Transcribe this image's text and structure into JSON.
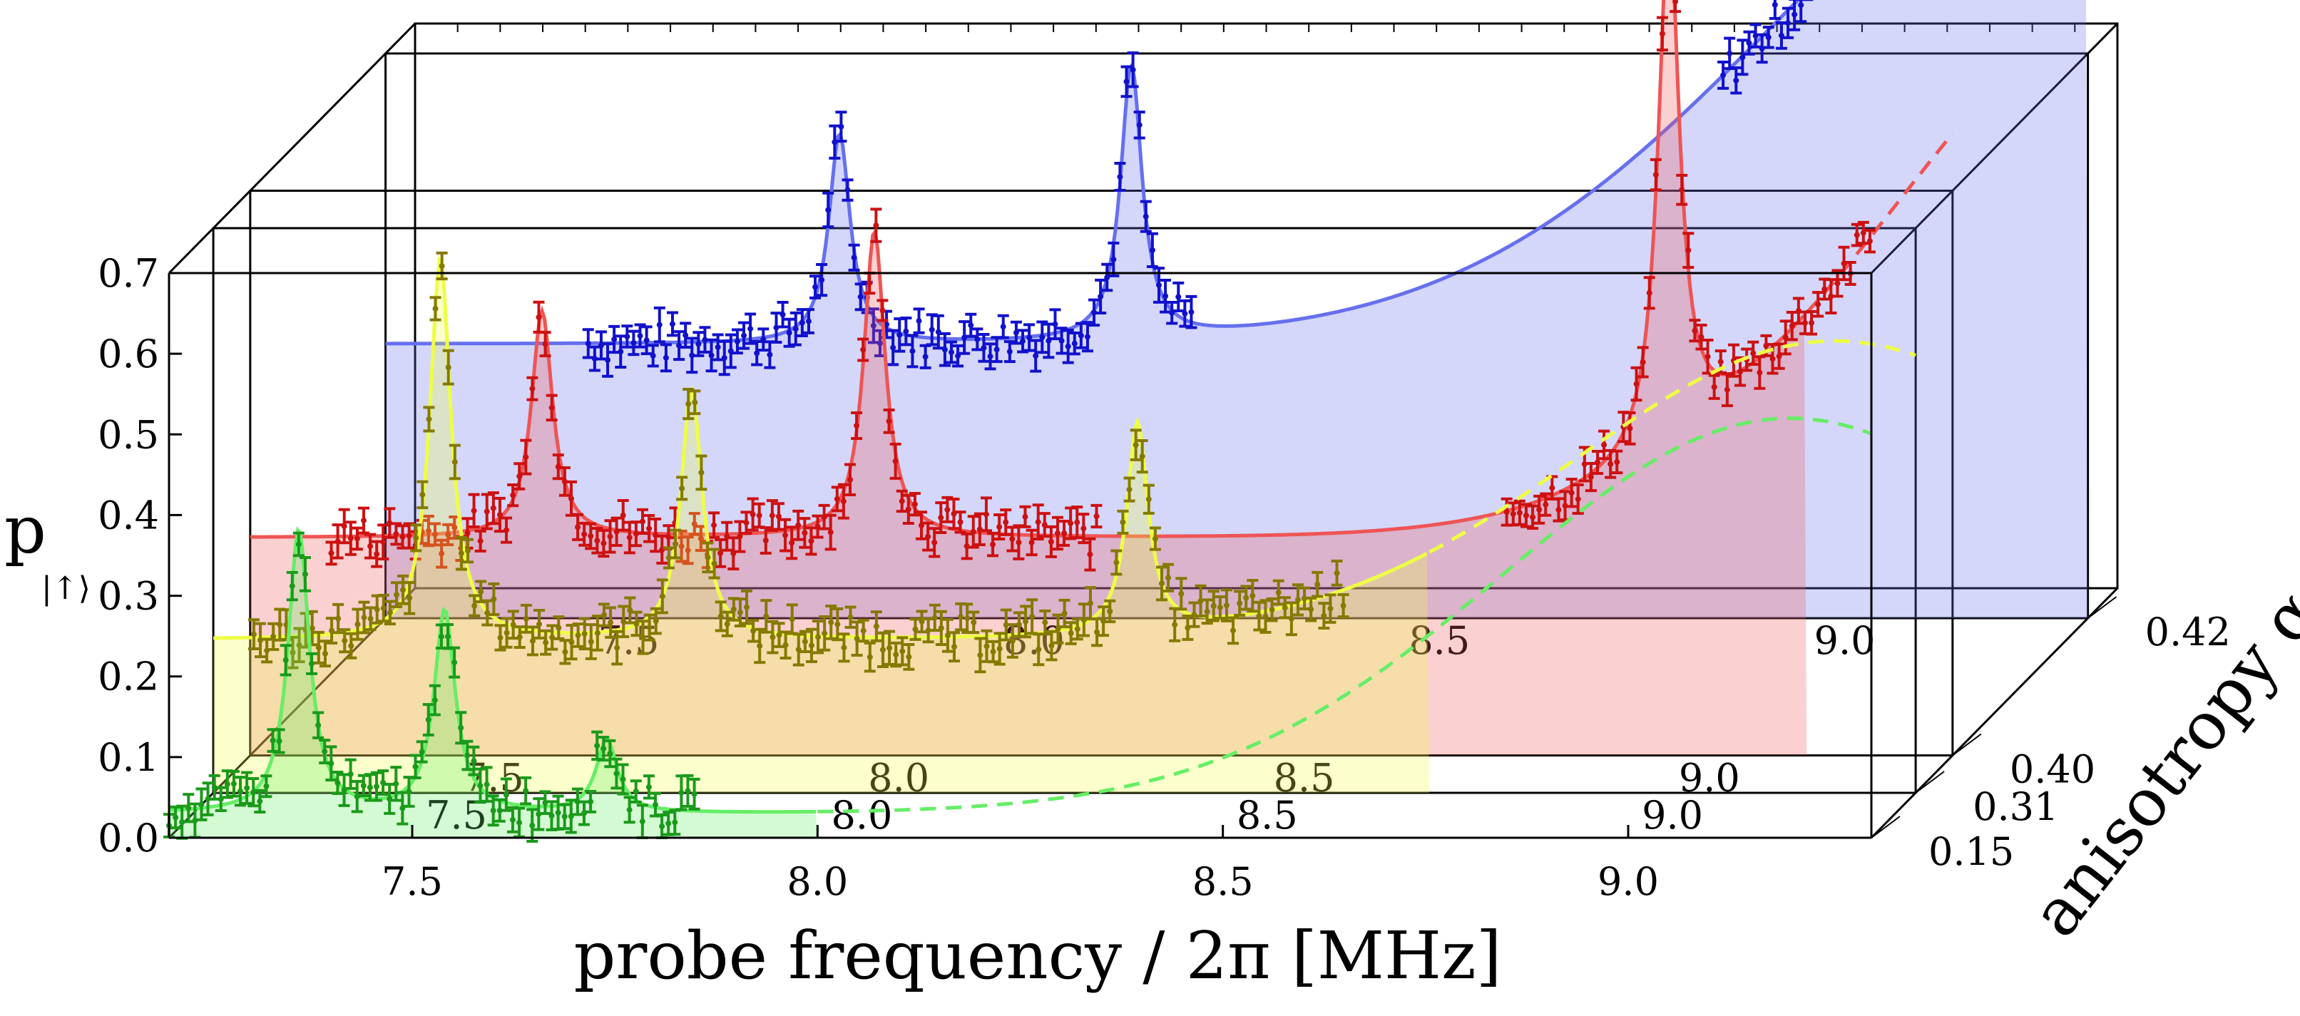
{
  "chart_data": {
    "type": "line",
    "title": "",
    "xlabel": "probe frequency / 2π [MHz]",
    "ylabel": "p",
    "ylabel_subscript": "|↑⟩",
    "zlabel": "anisotropy α",
    "xlim": [
      7.2,
      9.3
    ],
    "ylim": [
      0.0,
      0.7
    ],
    "x_ticks": [
      "7.5",
      "8.0",
      "8.5",
      "9.0"
    ],
    "y_ticks": [
      "0.0",
      "0.1",
      "0.2",
      "0.3",
      "0.4",
      "0.5",
      "0.6",
      "0.7"
    ],
    "z_ticks": [
      "0.15",
      "0.31",
      "0.40",
      "0.42"
    ],
    "series": [
      {
        "name": "0.15",
        "color": "#1a9a1a",
        "fit_color": "#66ee66",
        "baseline": 0.03,
        "data_range": [
          7.2,
          7.85
        ],
        "fit_solid_end": 8.0,
        "peaks": [
          {
            "x": 7.36,
            "y": 0.38
          },
          {
            "x": 7.54,
            "y": 0.28
          },
          {
            "x": 7.74,
            "y": 0.12
          }
        ],
        "tail": {
          "center": 9.2,
          "height": 0.49,
          "width": 0.5
        }
      },
      {
        "name": "0.31",
        "color": "#857a00",
        "fit_color": "#eeff44",
        "baseline": 0.19,
        "data_range": [
          7.25,
          8.6
        ],
        "fit_solid_end": 8.7,
        "peaks": [
          {
            "x": 7.48,
            "y": 0.66
          },
          {
            "x": 7.79,
            "y": 0.5
          },
          {
            "x": 8.34,
            "y": 0.45
          }
        ],
        "tail": {
          "center": 9.2,
          "height": 0.37,
          "width": 0.45
        }
      },
      {
        "name": "0.40",
        "color": "#cc1111",
        "fit_color": "#ee5555",
        "baseline": 0.27,
        "data_range": [
          7.3,
          8.25
        ],
        "data_range2": [
          8.75,
          9.2
        ],
        "fit_solid_end": 9.12,
        "peaks": [
          {
            "x": 7.56,
            "y": 0.55
          },
          {
            "x": 7.97,
            "y": 0.65
          },
          {
            "x": 8.95,
            "y": 0.92
          }
        ],
        "tail": {
          "center": 9.55,
          "height": 0.68,
          "width": 0.45
        }
      },
      {
        "name": "0.42",
        "color": "#1111cc",
        "fit_color": "#6670ee",
        "baseline": 0.34,
        "data_range": [
          7.45,
          8.2
        ],
        "data_range2": [
          8.85,
          9.25
        ],
        "fit_solid_end": 9.3,
        "peaks": [
          {
            "x": 7.76,
            "y": 0.6
          },
          {
            "x": 8.12,
            "y": 0.68
          }
        ],
        "tail": {
          "center": 9.3,
          "height": 0.65,
          "width": 0.55
        }
      }
    ]
  }
}
